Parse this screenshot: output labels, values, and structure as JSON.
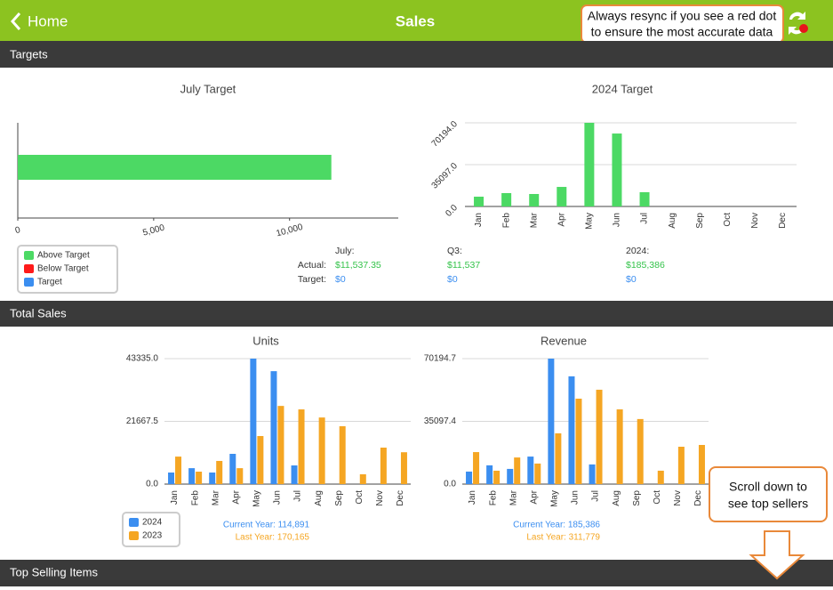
{
  "header": {
    "back": "Home",
    "title": "Sales"
  },
  "callouts": {
    "resync": [
      "Always resync if you see a red dot",
      "to ensure the most accurate data"
    ],
    "scroll": [
      "Scroll down to",
      "see top sellers"
    ]
  },
  "sections": [
    "Targets",
    "Total Sales",
    "Top Selling Items"
  ],
  "targets_summary": {
    "july": {
      "label": "July:",
      "actual_label": "Actual:",
      "actual": "$11,537.35",
      "target_label": "Target:",
      "target": "$0"
    },
    "q3": {
      "label": "Q3:",
      "actual": "$11,537",
      "target": "$0"
    },
    "year": {
      "label": "2024:",
      "actual": "$185,386",
      "target": "$0"
    }
  },
  "chart_data": [
    {
      "type": "barh",
      "title": "July Target",
      "categories": [
        null
      ],
      "series": [
        {
          "name": "Above Target",
          "color": "#4cd964",
          "values": [
            11537.35
          ]
        },
        {
          "name": "Below Target",
          "color": "#ff1a1a",
          "values": [
            null
          ]
        },
        {
          "name": "Target",
          "color": "#3b8ef0",
          "values": [
            0
          ]
        }
      ],
      "xlim": [
        0,
        14000
      ],
      "xticks": [
        0,
        {
          "value": 5000,
          "label": "5,000"
        },
        {
          "value": 10000,
          "label": "10,000"
        }
      ],
      "legend": "bottom-left"
    },
    {
      "type": "bar",
      "title": "2024 Target",
      "categories": [
        "Jan",
        "Feb",
        "Mar",
        "Apr",
        "May",
        "Jun",
        "Jul",
        "Aug",
        "Sep",
        "Oct",
        "Nov",
        "Dec"
      ],
      "series": [
        {
          "color": "#4cd964",
          "values": [
            8200,
            11200,
            10450,
            16400,
            70194,
            61200,
            11950,
            0,
            0,
            0,
            0,
            0
          ]
        }
      ],
      "ylim": [
        0,
        70194
      ],
      "yticks": [
        {
          "value": 0,
          "label": "0.0"
        },
        {
          "value": 35097,
          "label": "35097.0"
        },
        {
          "value": 70194,
          "label": "70194.0"
        }
      ],
      "grid": true
    },
    {
      "type": "bar",
      "title": "Units",
      "categories": [
        "Jan",
        "Feb",
        "Mar",
        "Apr",
        "May",
        "Jun",
        "Jul",
        "Aug",
        "Sep",
        "Oct",
        "Nov",
        "Dec"
      ],
      "series": [
        {
          "name": "2024",
          "color": "#3b8ef0",
          "values": [
            4000,
            5500,
            4000,
            10450,
            43335,
            39000,
            6450,
            0,
            0,
            0,
            0,
            0
          ]
        },
        {
          "name": "2023",
          "color": "#f5a623",
          "values": [
            9500,
            4300,
            8000,
            5500,
            16600,
            27000,
            25800,
            23000,
            20000,
            3400,
            12600,
            11000
          ]
        }
      ],
      "ylim": [
        0,
        43335
      ],
      "yticks": [
        {
          "value": 0,
          "label": "0.0"
        },
        {
          "value": 21667.5,
          "label": "21667.5"
        },
        {
          "value": 43335,
          "label": "43335.0"
        }
      ],
      "grid": true,
      "legend": "bottom-left",
      "totals": [
        "Current Year: 114,891",
        "Last Year: 170,165"
      ]
    },
    {
      "type": "bar",
      "title": "Revenue",
      "categories": [
        "Jan",
        "Feb",
        "Mar",
        "Apr",
        "May",
        "Jun",
        "Jul",
        "Aug",
        "Sep",
        "Oct",
        "Nov",
        "Dec"
      ],
      "series": [
        {
          "color": "#3b8ef0",
          "values": [
            7000,
            10500,
            8500,
            15400,
            70194.7,
            60300,
            11000,
            0,
            0,
            0,
            0,
            0
          ]
        },
        {
          "color": "#f5a623",
          "values": [
            17900,
            7500,
            14900,
            11500,
            28400,
            47800,
            52800,
            41800,
            36400,
            7500,
            20900,
            21900
          ]
        }
      ],
      "ylim": [
        0,
        70194.7
      ],
      "yticks": [
        {
          "value": 0,
          "label": "0.0"
        },
        {
          "value": 35097.35,
          "label": "35097.4"
        },
        {
          "value": 70194.7,
          "label": "70194.7"
        }
      ],
      "grid": true,
      "totals": [
        "Current Year: 185,386",
        "Last Year: 311,779"
      ]
    }
  ]
}
